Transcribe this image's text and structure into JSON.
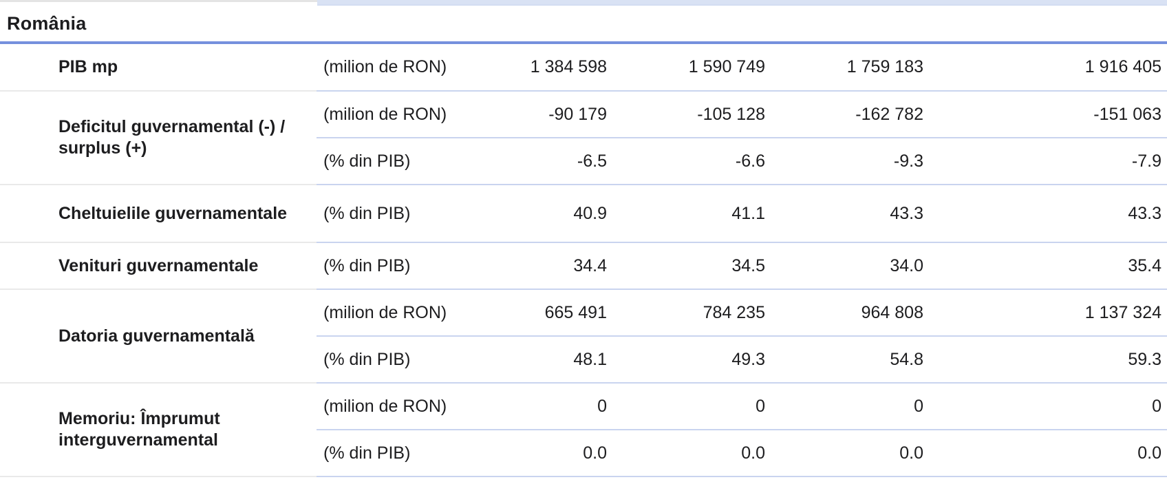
{
  "header": {
    "title": "România"
  },
  "colors": {
    "header_rule_blue": "#7590dd",
    "data_divider_blue": "#c9d4ef",
    "label_divider_gray": "#e9e9e9",
    "adjacent_row_strip_blue": "#d9e2f4",
    "text": "#1d1d1f"
  },
  "table": {
    "value_columns_count": 4,
    "groups": [
      {
        "label": "PIB mp",
        "rows": [
          {
            "unit": "(milion de RON)",
            "values": [
              "1 384 598",
              "1 590 749",
              "1 759 183",
              "1 916 405"
            ]
          }
        ]
      },
      {
        "label": "Deficitul guvernamental (-) / surplus (+)",
        "rows": [
          {
            "unit": "(milion de RON)",
            "values": [
              "-90 179",
              "-105 128",
              "-162 782",
              "-151 063"
            ]
          },
          {
            "unit": "(% din PIB)",
            "values": [
              "-6.5",
              "-6.6",
              "-9.3",
              "-7.9"
            ]
          }
        ]
      },
      {
        "label": "Cheltuielile guvernamentale",
        "rows": [
          {
            "unit": "(% din PIB)",
            "values": [
              "40.9",
              "41.1",
              "43.3",
              "43.3"
            ]
          }
        ]
      },
      {
        "label": "Venituri guvernamentale",
        "rows": [
          {
            "unit": "(% din PIB)",
            "values": [
              "34.4",
              "34.5",
              "34.0",
              "35.4"
            ]
          }
        ]
      },
      {
        "label": "Datoria guvernamentală",
        "rows": [
          {
            "unit": "(milion de RON)",
            "values": [
              "665 491",
              "784 235",
              "964 808",
              "1 137 324"
            ]
          },
          {
            "unit": "(% din PIB)",
            "values": [
              "48.1",
              "49.3",
              "54.8",
              "59.3"
            ]
          }
        ]
      },
      {
        "label": "Memoriu: Împrumut interguvernamental",
        "rows": [
          {
            "unit": "(milion de RON)",
            "values": [
              "0",
              "0",
              "0",
              "0"
            ]
          },
          {
            "unit": "(% din PIB)",
            "values": [
              "0.0",
              "0.0",
              "0.0",
              "0.0"
            ]
          }
        ]
      }
    ]
  },
  "chart_data": {
    "type": "table",
    "title": "România",
    "row_groups": [
      {
        "label": "PIB mp",
        "rows": [
          {
            "unit": "milion de RON",
            "values": [
              1384598,
              1590749,
              1759183,
              1916405
            ]
          }
        ]
      },
      {
        "label": "Deficitul guvernamental (-) / surplus (+)",
        "rows": [
          {
            "unit": "milion de RON",
            "values": [
              -90179,
              -105128,
              -162782,
              -151063
            ]
          },
          {
            "unit": "% din PIB",
            "values": [
              -6.5,
              -6.6,
              -9.3,
              -7.9
            ]
          }
        ]
      },
      {
        "label": "Cheltuielile guvernamentale",
        "rows": [
          {
            "unit": "% din PIB",
            "values": [
              40.9,
              41.1,
              43.3,
              43.3
            ]
          }
        ]
      },
      {
        "label": "Venituri guvernamentale",
        "rows": [
          {
            "unit": "% din PIB",
            "values": [
              34.4,
              34.5,
              34.0,
              35.4
            ]
          }
        ]
      },
      {
        "label": "Datoria guvernamentală",
        "rows": [
          {
            "unit": "milion de RON",
            "values": [
              665491,
              784235,
              964808,
              1137324
            ]
          },
          {
            "unit": "% din PIB",
            "values": [
              48.1,
              49.3,
              54.8,
              59.3
            ]
          }
        ]
      },
      {
        "label": "Memoriu: Împrumut interguvernamental",
        "rows": [
          {
            "unit": "milion de RON",
            "values": [
              0,
              0,
              0,
              0
            ]
          },
          {
            "unit": "% din PIB",
            "values": [
              0.0,
              0.0,
              0.0,
              0.0
            ]
          }
        ]
      }
    ]
  }
}
